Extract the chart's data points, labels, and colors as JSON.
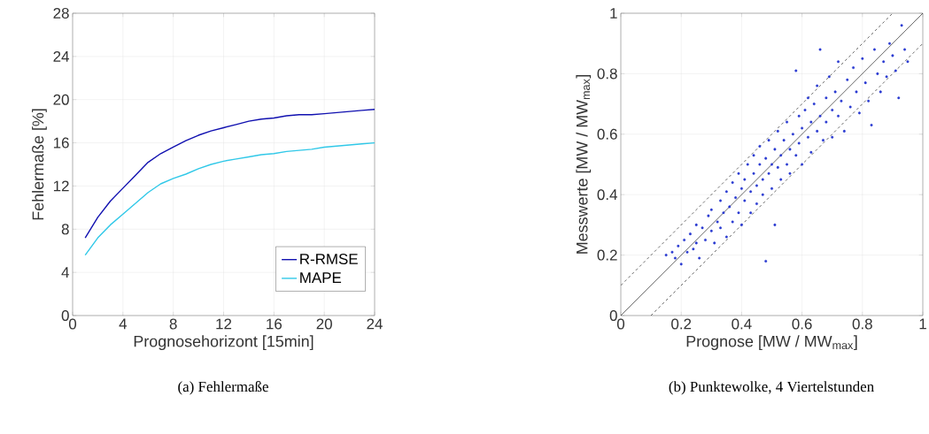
{
  "chart_data": [
    {
      "type": "line",
      "xlabel": "Prognosehorizont [15min]",
      "ylabel": "Fehlermaße [%]",
      "annotations": [
        "(a) Fehlermaße"
      ],
      "xlim": [
        0,
        24
      ],
      "xticks": [
        0,
        4,
        8,
        12,
        16,
        20,
        24
      ],
      "ylim": [
        0,
        28
      ],
      "yticks": [
        0,
        4,
        8,
        12,
        16,
        20,
        24,
        28
      ],
      "grid": true,
      "legend": "bottom right",
      "x": [
        1,
        2,
        3,
        4,
        5,
        6,
        7,
        8,
        9,
        10,
        11,
        12,
        13,
        14,
        15,
        16,
        17,
        18,
        19,
        20,
        21,
        22,
        23,
        24
      ],
      "series": [
        {
          "name": "R-RMSE",
          "color": "#1010b0",
          "values": [
            7.2,
            9.1,
            10.6,
            11.8,
            13.0,
            14.2,
            15.0,
            15.6,
            16.2,
            16.7,
            17.1,
            17.4,
            17.7,
            18.0,
            18.2,
            18.3,
            18.5,
            18.6,
            18.6,
            18.7,
            18.8,
            18.9,
            19.0,
            19.1
          ]
        },
        {
          "name": "MAPE",
          "color": "#30c8e8",
          "values": [
            5.6,
            7.2,
            8.4,
            9.4,
            10.4,
            11.4,
            12.2,
            12.7,
            13.1,
            13.6,
            14.0,
            14.3,
            14.5,
            14.7,
            14.9,
            15.0,
            15.2,
            15.3,
            15.4,
            15.6,
            15.7,
            15.8,
            15.9,
            16.0
          ]
        }
      ]
    },
    {
      "type": "scatter",
      "xlabel": "Prognose [MW / MW$_{max}$]",
      "ylabel": "Messwerte [MW / MW$_{max}$]",
      "annotations": [
        "(b) Punktewolke, 4 Viertelstunden"
      ],
      "xlim": [
        0,
        1
      ],
      "xticks": [
        0,
        0.2,
        0.4,
        0.6,
        0.8,
        1
      ],
      "ylim": [
        0,
        1
      ],
      "yticks": [
        0,
        0.2,
        0.4,
        0.6,
        0.8,
        1
      ],
      "grid": true,
      "series": [
        {
          "type": "scatter",
          "color": "#2a3bd1",
          "marker": "circle",
          "x": [
            0.15,
            0.17,
            0.18,
            0.19,
            0.2,
            0.21,
            0.22,
            0.23,
            0.24,
            0.25,
            0.25,
            0.26,
            0.27,
            0.28,
            0.29,
            0.3,
            0.3,
            0.31,
            0.32,
            0.33,
            0.33,
            0.34,
            0.35,
            0.35,
            0.36,
            0.37,
            0.37,
            0.38,
            0.39,
            0.39,
            0.4,
            0.4,
            0.41,
            0.41,
            0.42,
            0.43,
            0.43,
            0.44,
            0.44,
            0.45,
            0.45,
            0.46,
            0.46,
            0.47,
            0.47,
            0.48,
            0.48,
            0.49,
            0.49,
            0.5,
            0.5,
            0.51,
            0.51,
            0.52,
            0.52,
            0.53,
            0.53,
            0.54,
            0.55,
            0.55,
            0.56,
            0.56,
            0.57,
            0.58,
            0.58,
            0.59,
            0.59,
            0.6,
            0.6,
            0.61,
            0.62,
            0.62,
            0.63,
            0.63,
            0.64,
            0.65,
            0.65,
            0.66,
            0.66,
            0.67,
            0.68,
            0.68,
            0.69,
            0.7,
            0.7,
            0.71,
            0.72,
            0.72,
            0.73,
            0.74,
            0.75,
            0.76,
            0.77,
            0.78,
            0.79,
            0.8,
            0.81,
            0.82,
            0.83,
            0.84,
            0.85,
            0.86,
            0.87,
            0.88,
            0.89,
            0.9,
            0.91,
            0.92,
            0.93,
            0.94,
            0.95
          ],
          "values": [
            0.2,
            0.21,
            0.19,
            0.23,
            0.17,
            0.25,
            0.21,
            0.27,
            0.22,
            0.3,
            0.24,
            0.19,
            0.29,
            0.25,
            0.33,
            0.28,
            0.35,
            0.24,
            0.31,
            0.38,
            0.29,
            0.34,
            0.26,
            0.41,
            0.36,
            0.31,
            0.44,
            0.39,
            0.34,
            0.47,
            0.42,
            0.3,
            0.45,
            0.38,
            0.5,
            0.41,
            0.34,
            0.47,
            0.53,
            0.43,
            0.37,
            0.5,
            0.56,
            0.45,
            0.4,
            0.52,
            0.18,
            0.47,
            0.58,
            0.5,
            0.42,
            0.55,
            0.3,
            0.49,
            0.61,
            0.53,
            0.45,
            0.58,
            0.5,
            0.64,
            0.55,
            0.47,
            0.6,
            0.53,
            0.81,
            0.66,
            0.57,
            0.62,
            0.5,
            0.68,
            0.59,
            0.72,
            0.64,
            0.54,
            0.7,
            0.61,
            0.76,
            0.66,
            0.88,
            0.58,
            0.72,
            0.64,
            0.79,
            0.68,
            0.59,
            0.74,
            0.66,
            0.84,
            0.71,
            0.61,
            0.78,
            0.69,
            0.82,
            0.74,
            0.67,
            0.85,
            0.77,
            0.71,
            0.63,
            0.88,
            0.8,
            0.74,
            0.84,
            0.79,
            0.9,
            0.86,
            0.81,
            0.72,
            0.96,
            0.88,
            0.84
          ]
        },
        {
          "type": "line",
          "color": "#000000",
          "line_style": "solid",
          "marker": "none",
          "x": [
            0,
            1
          ],
          "values": [
            0,
            1
          ]
        },
        {
          "type": "line",
          "color": "#000000",
          "line_style": "dashed",
          "marker": "none",
          "x": [
            0,
            0.9
          ],
          "values": [
            0.1,
            1
          ]
        },
        {
          "type": "line",
          "color": "#000000",
          "line_style": "dashed",
          "marker": "none",
          "x": [
            0.1,
            1
          ],
          "values": [
            0,
            0.9
          ]
        }
      ]
    }
  ]
}
